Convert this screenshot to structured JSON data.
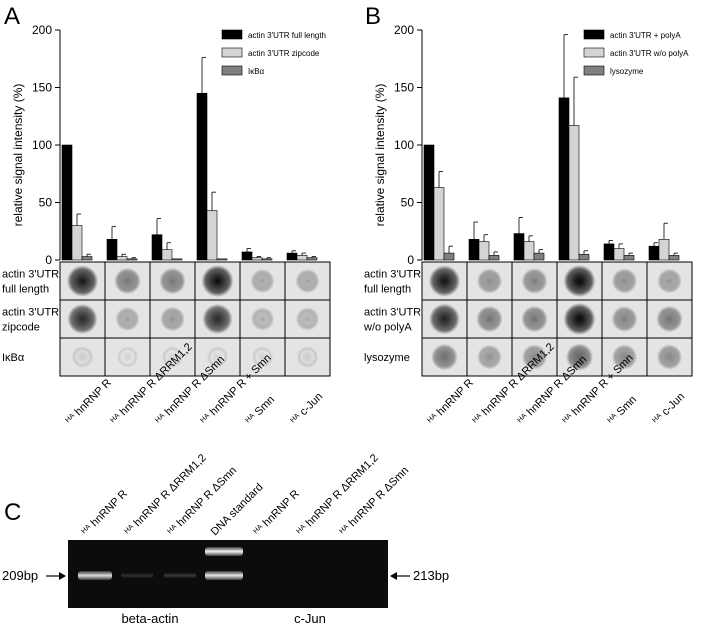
{
  "panels": {
    "A": {
      "letter": "A"
    },
    "B": {
      "letter": "B"
    },
    "C": {
      "letter": "C"
    }
  },
  "chart_data": [
    {
      "type": "bar",
      "panel": "A",
      "ylabel": "relative signal intensity (%)",
      "ylim": [
        0,
        200
      ],
      "yticks": [
        0,
        50,
        100,
        150,
        200
      ],
      "categories": [
        "HA hnRNP R",
        "HA hnRNP R ΔRRM1,2",
        "HA hnRNP R ΔSmn",
        "HA hnRNP R + Smn",
        "HA Smn",
        "HA c-Jun"
      ],
      "series": [
        {
          "name": "actin 3'UTR  full length",
          "color": "#000000",
          "values": [
            100,
            18,
            22,
            145,
            7,
            6
          ],
          "errors": [
            0,
            11,
            14,
            31,
            3,
            2
          ]
        },
        {
          "name": "actin 3'UTR  zipcode",
          "color": "#d4d4d4",
          "values": [
            30,
            3,
            9,
            43,
            2,
            4
          ],
          "errors": [
            10,
            2,
            6,
            16,
            1,
            2
          ]
        },
        {
          "name": "IκBα",
          "color": "#808080",
          "values": [
            3,
            1,
            1,
            1,
            1,
            2
          ],
          "errors": [
            2,
            1,
            0,
            0,
            1,
            1
          ]
        }
      ]
    },
    {
      "type": "bar",
      "panel": "B",
      "ylabel": "relative signal intensity (%)",
      "ylim": [
        0,
        200
      ],
      "yticks": [
        0,
        50,
        100,
        150,
        200
      ],
      "categories": [
        "HA hnRNP R",
        "HA hnRNP R ΔRRM1,2",
        "HA hnRNP R ΔSmn",
        "HA hnRNP R + Smn",
        "HA Smn",
        "HA c-Jun"
      ],
      "series": [
        {
          "name": "actin 3'UTR  + polyA",
          "color": "#000000",
          "values": [
            100,
            18,
            23,
            141,
            14,
            12
          ],
          "errors": [
            0,
            15,
            14,
            55,
            3,
            3
          ]
        },
        {
          "name": "actin 3'UTR w/o polyA",
          "color": "#d4d4d4",
          "values": [
            63,
            16,
            16,
            117,
            10,
            18
          ],
          "errors": [
            14,
            6,
            5,
            42,
            4,
            14
          ]
        },
        {
          "name": "lysozyme",
          "color": "#808080",
          "values": [
            6,
            4,
            6,
            5,
            4,
            4
          ],
          "errors": [
            6,
            3,
            3,
            3,
            2,
            2
          ]
        }
      ]
    }
  ],
  "blots": {
    "A": {
      "rows": [
        {
          "label_lines": [
            "actin 3'UTR",
            "full length"
          ],
          "intensity": [
            0.95,
            0.55,
            0.55,
            1.0,
            0.35,
            0.35
          ],
          "ring": 0.2
        },
        {
          "label_lines": [
            "actin 3'UTR",
            "zipcode"
          ],
          "intensity": [
            0.85,
            0.35,
            0.4,
            0.85,
            0.3,
            0.3
          ],
          "ring": 0.3
        },
        {
          "label_lines": [
            "IκBα"
          ],
          "intensity": [
            0.15,
            0.12,
            0.12,
            0.12,
            0.12,
            0.15
          ],
          "ring": 0.6
        }
      ],
      "lanes": [
        {
          "prefix": "HA",
          "name": "hnRNP R"
        },
        {
          "prefix": "HA",
          "name": "hnRNP R ΔRRM1,2"
        },
        {
          "prefix": "HA",
          "name": "hnRNP R ΔSmn"
        },
        {
          "prefix": "HA",
          "name": "hnRNP R + Smn"
        },
        {
          "prefix": "HA",
          "name": "Smn"
        },
        {
          "prefix": "HA",
          "name": "c-Jun"
        }
      ]
    },
    "B": {
      "rows": [
        {
          "label_lines": [
            "actin 3'UTR",
            "full length"
          ],
          "intensity": [
            0.95,
            0.45,
            0.5,
            1.0,
            0.45,
            0.4
          ],
          "ring": 0.25
        },
        {
          "label_lines": [
            "actin 3'UTR",
            "w/o polyA"
          ],
          "intensity": [
            0.9,
            0.55,
            0.55,
            1.0,
            0.5,
            0.55
          ],
          "ring": 0.25
        },
        {
          "label_lines": [
            "lysozyme"
          ],
          "intensity": [
            0.55,
            0.4,
            0.45,
            0.6,
            0.45,
            0.45
          ],
          "ring": 0.45
        }
      ],
      "lanes": [
        {
          "prefix": "HA",
          "name": "hnRNP R"
        },
        {
          "prefix": "HA",
          "name": "hnRNP R ΔRRM1,2"
        },
        {
          "prefix": "HA",
          "name": "hnRNP R ΔSmn"
        },
        {
          "prefix": "HA",
          "name": "hnRNP R + Smn"
        },
        {
          "prefix": "HA",
          "name": "Smn"
        },
        {
          "prefix": "HA",
          "name": "c-Jun"
        }
      ]
    }
  },
  "gel": {
    "lanes": [
      {
        "prefix": "HA",
        "name": "hnRNP R"
      },
      {
        "prefix": "HA",
        "name": "hnRNP R ΔRRM1,2"
      },
      {
        "prefix": "HA",
        "name": "hnRNP R ΔSmn"
      },
      {
        "prefix": "",
        "name": "DNA standard"
      },
      {
        "prefix": "HA",
        "name": "hnRNP R"
      },
      {
        "prefix": "HA",
        "name": "hnRNP R ΔRRM1,2"
      },
      {
        "prefix": "HA",
        "name": "hnRNP R ΔSmn"
      }
    ],
    "left_marker": "209bp",
    "right_marker": "213bp",
    "group_labels": [
      "beta-actin",
      "c-Jun"
    ]
  }
}
